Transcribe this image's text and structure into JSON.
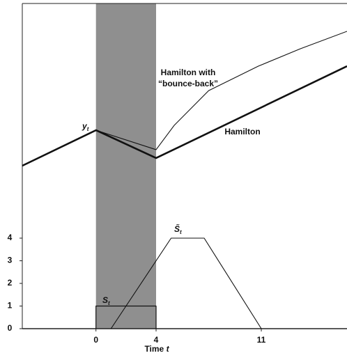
{
  "chart_data": {
    "type": "line",
    "xlim": [
      -4.9,
      16.7
    ],
    "xticks": [
      0,
      4,
      11
    ],
    "ylim": [
      0,
      14.37
    ],
    "yticks": [
      0,
      1,
      2,
      3,
      4
    ],
    "xlabel": [
      "Time ",
      "t"
    ],
    "shade": [
      0,
      4
    ],
    "shade_color": "#8f8f8f",
    "series": [
      {
        "x": [
          -4.9,
          0,
          4,
          16.7
        ],
        "values": [
          7.2,
          8.77,
          7.54,
          11.6
        ],
        "color": "#111",
        "width": 2.6
      },
      {
        "x": [
          0,
          4,
          5.2,
          7.5,
          10.8,
          13.6,
          16.7
        ],
        "values": [
          8.77,
          7.91,
          8.98,
          10.52,
          11.6,
          12.37,
          13.14
        ],
        "color": "#111",
        "width": 1.1
      },
      {
        "x": [
          0,
          0,
          4,
          4
        ],
        "values": [
          0,
          1,
          1,
          0
        ],
        "color": "#111",
        "width": 1.2
      },
      {
        "x": [
          1,
          5,
          7.2,
          11
        ],
        "values": [
          0,
          4,
          4,
          0
        ],
        "color": "#111",
        "width": 1.1
      }
    ],
    "annotations": [
      {
        "text": "y",
        "sub": "t"
      },
      {
        "lines": [
          "Hamilton with",
          "“bounce-back”"
        ]
      },
      {
        "lines": [
          "Hamilton"
        ]
      },
      {
        "text": "S̃",
        "sub": "t"
      },
      {
        "text": "S",
        "sub": "t"
      }
    ]
  }
}
